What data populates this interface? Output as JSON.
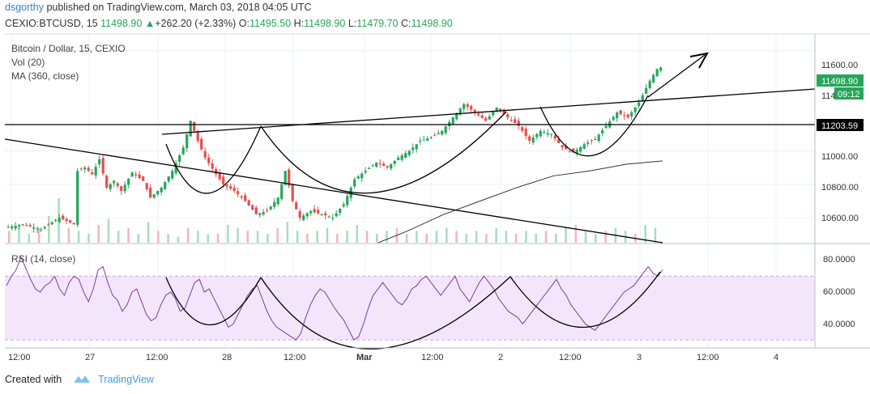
{
  "header": {
    "user": "dsgorthy",
    "published": "published on TradingView.com, March 03, 2018 04:05 UTC"
  },
  "ohlc": {
    "symbol": "CEXIO:BTCUSD, 15",
    "last": "11498.90",
    "change": "+262.20 (+2.33%)",
    "o_label": "O:",
    "o": "11495.50",
    "h_label": "H:",
    "h": "11498.90",
    "l_label": "L:",
    "l": "11479.70",
    "c_label": "C:",
    "c": "11498.90"
  },
  "legend": {
    "title": "Bitcoin / Dollar, 15, CEXIO",
    "vol": "Vol (20)",
    "ma": "MA (360, close)",
    "rsi": "RSI (14, close)"
  },
  "price_axis": {
    "ticks": [
      "11600.00",
      "11000.00",
      "10800.00",
      "10600.00"
    ],
    "partial_tick": "114",
    "last_price_badge": "11498.90",
    "countdown_badge": "09:12",
    "level_badge": "11203.59"
  },
  "rsi_axis": {
    "ticks": [
      "80.0000",
      "60.0000",
      "40.0000"
    ]
  },
  "time_axis": {
    "ticks": [
      "12:00",
      "27",
      "12:00",
      "28",
      "12:00",
      "Mar",
      "12:00",
      "2",
      "12:00",
      "3",
      "12:00",
      "4"
    ]
  },
  "footer": {
    "created_with": "Created with",
    "brand": "TradingView"
  },
  "colors": {
    "up": "#26a65b",
    "down": "#e84d4d",
    "ma": "#333333",
    "rsi_line": "#7e3aa8",
    "rsi_band": "#f3e6fb",
    "grid": "#eef0f3",
    "badge_green": "#26a65b",
    "badge_black": "#000000"
  },
  "chart_data": {
    "type": "candlestick",
    "title": "Bitcoin / Dollar, 15, CEXIO",
    "y_axis": {
      "min": 10450,
      "max": 11700,
      "ticks": [
        10600,
        10800,
        11000,
        11600
      ]
    },
    "x_axis_ticks": [
      "12:00",
      "27",
      "12:00",
      "28",
      "12:00",
      "Mar",
      "12:00",
      "2",
      "12:00",
      "3",
      "12:00",
      "4"
    ],
    "close_path": [
      [
        0,
        10540
      ],
      [
        5,
        10560
      ],
      [
        10,
        10530
      ],
      [
        15,
        10600
      ],
      [
        19,
        10560
      ],
      [
        20,
        10880
      ],
      [
        22,
        10900
      ],
      [
        24,
        10860
      ],
      [
        26,
        10950
      ],
      [
        28,
        10780
      ],
      [
        30,
        10820
      ],
      [
        32,
        10760
      ],
      [
        35,
        10870
      ],
      [
        38,
        10820
      ],
      [
        40,
        10720
      ],
      [
        43,
        10780
      ],
      [
        46,
        10880
      ],
      [
        49,
        11020
      ],
      [
        51,
        11180
      ],
      [
        53,
        11060
      ],
      [
        55,
        10960
      ],
      [
        58,
        10860
      ],
      [
        60,
        10800
      ],
      [
        63,
        10760
      ],
      [
        66,
        10700
      ],
      [
        69,
        10620
      ],
      [
        72,
        10640
      ],
      [
        75,
        10720
      ],
      [
        77,
        10880
      ],
      [
        79,
        10700
      ],
      [
        81,
        10600
      ],
      [
        84,
        10640
      ],
      [
        87,
        10620
      ],
      [
        90,
        10600
      ],
      [
        93,
        10680
      ],
      [
        96,
        10830
      ],
      [
        99,
        10880
      ],
      [
        102,
        10930
      ],
      [
        105,
        10900
      ],
      [
        108,
        10960
      ],
      [
        111,
        11000
      ],
      [
        114,
        11060
      ],
      [
        117,
        11080
      ],
      [
        120,
        11120
      ],
      [
        123,
        11200
      ],
      [
        126,
        11280
      ],
      [
        129,
        11230
      ],
      [
        132,
        11180
      ],
      [
        135,
        11260
      ],
      [
        138,
        11200
      ],
      [
        141,
        11150
      ],
      [
        144,
        11060
      ],
      [
        147,
        11120
      ],
      [
        150,
        11100
      ],
      [
        153,
        11020
      ],
      [
        156,
        10990
      ],
      [
        159,
        11040
      ],
      [
        162,
        11070
      ],
      [
        165,
        11150
      ],
      [
        168,
        11230
      ],
      [
        171,
        11200
      ],
      [
        174,
        11290
      ],
      [
        177,
        11420
      ],
      [
        179,
        11490
      ],
      [
        180,
        11499
      ]
    ],
    "volume": {
      "name": "Vol (20)",
      "bars": [
        4,
        6,
        3,
        5,
        9,
        15,
        5,
        4,
        3,
        6,
        8,
        4,
        5,
        3,
        7,
        4,
        3,
        2,
        5,
        4,
        3,
        3,
        6,
        5,
        4,
        4,
        3,
        5,
        7,
        4,
        3,
        4,
        5,
        3,
        4,
        6,
        4,
        3,
        4,
        5,
        3,
        4,
        3,
        4,
        5,
        4,
        3,
        4,
        3,
        5,
        4,
        3,
        4,
        3,
        4,
        3,
        5,
        6,
        4,
        3,
        4,
        5,
        4,
        3,
        6,
        5
      ]
    },
    "ma": {
      "name": "MA (360, close)",
      "points": [
        [
          102,
          10450
        ],
        [
          110,
          10520
        ],
        [
          120,
          10620
        ],
        [
          130,
          10700
        ],
        [
          140,
          10780
        ],
        [
          150,
          10850
        ],
        [
          160,
          10880
        ],
        [
          170,
          10920
        ],
        [
          180,
          10940
        ]
      ]
    },
    "rsi": {
      "name": "RSI (14, close)",
      "range": [
        25,
        90
      ],
      "ticks": [
        80,
        60,
        40
      ],
      "band": [
        30,
        70
      ],
      "values": [
        64,
        70,
        74,
        82,
        75,
        68,
        62,
        60,
        64,
        66,
        70,
        62,
        58,
        66,
        70,
        68,
        60,
        54,
        62,
        74,
        76,
        66,
        58,
        55,
        48,
        52,
        60,
        62,
        54,
        46,
        42,
        44,
        52,
        58,
        60,
        56,
        48,
        50,
        58,
        66,
        68,
        60,
        62,
        56,
        50,
        44,
        38,
        40,
        46,
        52,
        58,
        62,
        64,
        56,
        48,
        42,
        38,
        36,
        34,
        32,
        30,
        34,
        44,
        52,
        58,
        62,
        60,
        55,
        50,
        46,
        42,
        36,
        30,
        32,
        40,
        50,
        58,
        62,
        66,
        62,
        58,
        54,
        52,
        56,
        62,
        64,
        68,
        70,
        66,
        62,
        58,
        62,
        66,
        70,
        62,
        58,
        54,
        60,
        66,
        70,
        66,
        62,
        56,
        52,
        48,
        46,
        44,
        40,
        44,
        48,
        52,
        56,
        60,
        64,
        68,
        62,
        58,
        52,
        48,
        44,
        40,
        38,
        36,
        40,
        44,
        48,
        52,
        56,
        60,
        62,
        64,
        68,
        72,
        76,
        72,
        70,
        74
      ]
    },
    "annotations": {
      "resistance_level": 11203.59
    }
  }
}
